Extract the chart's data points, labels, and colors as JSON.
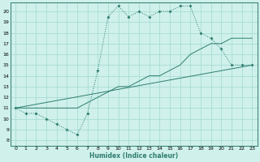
{
  "xlabel": "Humidex (Indice chaleur)",
  "xlim": [
    -0.5,
    23.5
  ],
  "ylim": [
    7.5,
    20.8
  ],
  "xticks": [
    0,
    1,
    2,
    3,
    4,
    5,
    6,
    7,
    8,
    9,
    10,
    11,
    12,
    13,
    14,
    15,
    16,
    17,
    18,
    19,
    20,
    21,
    22,
    23
  ],
  "yticks": [
    8,
    9,
    10,
    11,
    12,
    13,
    14,
    15,
    16,
    17,
    18,
    19,
    20
  ],
  "bg_color": "#cff0eb",
  "line_color": "#2e7d6e",
  "grid_color": "#a8ddd5",
  "line1_x": [
    0,
    1,
    2,
    3,
    4,
    5,
    6,
    7,
    8,
    9,
    10,
    11,
    12,
    13,
    14,
    15,
    16,
    17,
    18,
    19,
    20,
    21,
    22,
    23
  ],
  "line1_y": [
    11,
    10.5,
    10.5,
    10,
    9.5,
    9,
    8.5,
    10.5,
    14.5,
    19.5,
    20.5,
    19.5,
    20,
    19.5,
    20,
    20,
    20.5,
    20.5,
    18,
    17.5,
    16.5,
    15,
    15,
    15
  ],
  "line2_x": [
    0,
    3,
    4,
    5,
    6,
    7,
    8,
    9,
    10,
    11,
    12,
    13,
    14,
    15,
    16,
    17,
    18,
    19,
    20,
    21,
    22,
    23
  ],
  "line2_y": [
    11,
    11,
    11,
    11,
    11,
    11.5,
    12,
    12.5,
    13,
    13,
    13.5,
    14,
    14,
    14.5,
    15,
    16,
    16.5,
    17,
    17,
    17.5,
    17.5,
    17.5
  ],
  "line3_x": [
    0,
    23
  ],
  "line3_y": [
    11,
    15
  ]
}
